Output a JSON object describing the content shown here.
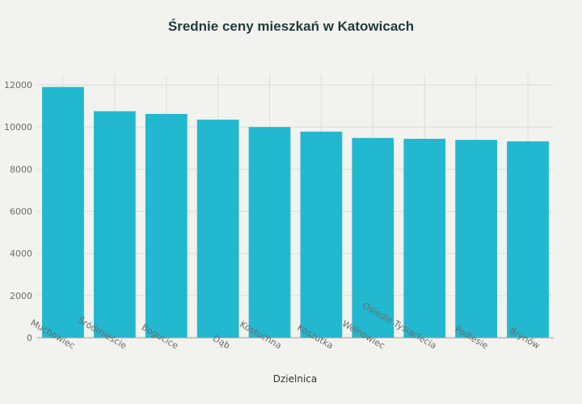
{
  "chart_data": {
    "type": "bar",
    "title": "Średnie ceny mieszkań w Katowicach",
    "xlabel": "Dzielnica",
    "ylabel": "",
    "categories": [
      "Muchowiec",
      "Śródmieście",
      "Bogucice",
      "Dąb",
      "Kostuchna",
      "Koszutka",
      "Wełnowiec",
      "Osiedle Tysiąclecia",
      "Podlesie",
      "Brynów"
    ],
    "values": [
      11900,
      10750,
      10620,
      10350,
      10000,
      9780,
      9480,
      9440,
      9390,
      9320
    ],
    "ylim": [
      0,
      12500
    ],
    "yticks": [
      0,
      2000,
      4000,
      6000,
      8000,
      10000,
      12000
    ],
    "grid": true,
    "legend": "none",
    "bar_color": "#22b8cf"
  }
}
